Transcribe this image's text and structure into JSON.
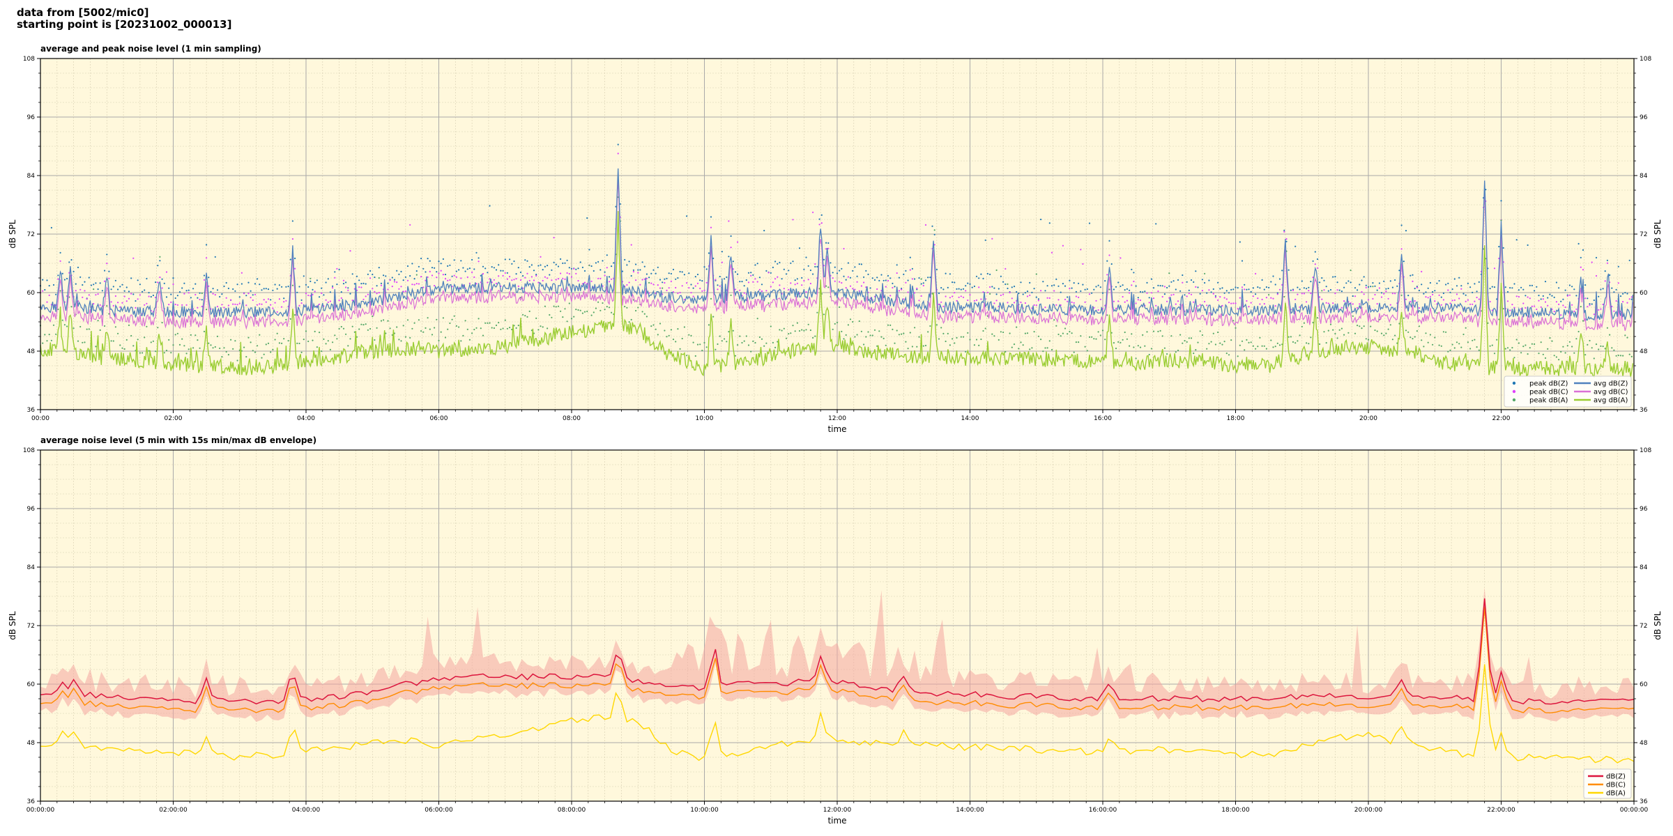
{
  "header": {
    "line1": "data from [5002/mic0]",
    "line2": "starting point is [20231002_000013]"
  },
  "colors": {
    "background": "#fff8dc",
    "grid_major": "#a9a9a9",
    "grid_minor": "#d6cdb0",
    "peak_z": "#1f77b4",
    "peak_c": "#e040fb",
    "peak_a": "#55a868",
    "avg_z": "#4f81bd",
    "avg_c": "#da70d6",
    "avg_a": "#9acd32",
    "dbz": "#dc143c",
    "dbc": "#ff8c00",
    "dba": "#ffd700",
    "envelope": "#f4a6a0"
  },
  "chart_data": [
    {
      "type": "line",
      "title": "average and peak noise level (1 min sampling)",
      "xlabel": "time",
      "ylabel": "dB SPL",
      "ylabel_right": "dB SPL",
      "ylim": [
        36,
        108
      ],
      "xlim_hours": [
        0,
        24
      ],
      "yticks": [
        "36",
        "48",
        "60",
        "72",
        "84",
        "96",
        "108"
      ],
      "xticks": [
        "00:00",
        "02:00",
        "04:00",
        "06:00",
        "08:00",
        "10:00",
        "12:00",
        "14:00",
        "16:00",
        "18:00",
        "20:00",
        "22:00"
      ],
      "grid": true,
      "legend_position": "lower-right",
      "series": [
        {
          "name": "peak dB(Z)",
          "kind": "scatter",
          "color": "#1f77b4"
        },
        {
          "name": "peak dB(C)",
          "kind": "scatter",
          "color": "#e040fb"
        },
        {
          "name": "peak dB(A)",
          "kind": "scatter",
          "color": "#55a868"
        },
        {
          "name": "avg dB(Z)",
          "kind": "line",
          "color": "#4f81bd"
        },
        {
          "name": "avg dB(C)",
          "kind": "line",
          "color": "#da70d6"
        },
        {
          "name": "avg dB(A)",
          "kind": "line",
          "color": "#9acd32"
        }
      ],
      "profile_hours": [
        0,
        0.5,
        1,
        1.5,
        2,
        2.5,
        3,
        3.5,
        4,
        4.5,
        5,
        5.5,
        6,
        6.5,
        7,
        7.5,
        8,
        8.5,
        9,
        9.5,
        10,
        10.5,
        11,
        11.5,
        12,
        12.5,
        13,
        13.5,
        14,
        14.5,
        15,
        15.5,
        16,
        16.5,
        17,
        17.5,
        18,
        18.5,
        19,
        19.5,
        20,
        20.5,
        21,
        21.5,
        22,
        22.5,
        23,
        23.5,
        24
      ],
      "avg_z_profile": [
        57,
        57,
        56.5,
        56,
        56,
        56,
        56,
        56,
        56.5,
        57,
        58,
        59.5,
        60.5,
        61,
        61,
        61,
        61,
        61,
        60,
        59,
        58.5,
        59,
        59.5,
        60,
        60,
        59,
        58,
        57,
        57,
        57,
        56.5,
        56.5,
        56.5,
        56.5,
        56.5,
        56.5,
        56.5,
        56.5,
        56.5,
        57,
        57,
        57,
        57,
        56.5,
        56,
        56,
        55.5,
        55.5,
        55.5
      ],
      "avg_a_profile": [
        48.5,
        47.5,
        46.5,
        46,
        45.5,
        45,
        44.5,
        45,
        46,
        47,
        48,
        48.5,
        48,
        48.5,
        49,
        50.5,
        52,
        53,
        52.5,
        47,
        44.5,
        45.5,
        47,
        48.5,
        49,
        48,
        47,
        47,
        46.5,
        46.5,
        46.5,
        46,
        46,
        45.5,
        46,
        46,
        45,
        45,
        47,
        48.5,
        49,
        48,
        46,
        45,
        44.5,
        44.5,
        44.5,
        44,
        44
      ],
      "spikes": [
        {
          "hour": 0.3,
          "value": 64
        },
        {
          "hour": 0.45,
          "value": 66
        },
        {
          "hour": 1.0,
          "value": 64
        },
        {
          "hour": 1.8,
          "value": 63
        },
        {
          "hour": 2.5,
          "value": 64
        },
        {
          "hour": 3.8,
          "value": 68
        },
        {
          "hour": 8.7,
          "value": 86
        },
        {
          "hour": 10.1,
          "value": 71
        },
        {
          "hour": 10.4,
          "value": 68
        },
        {
          "hour": 11.75,
          "value": 74
        },
        {
          "hour": 11.85,
          "value": 70
        },
        {
          "hour": 13.45,
          "value": 71
        },
        {
          "hour": 16.1,
          "value": 66
        },
        {
          "hour": 18.75,
          "value": 71
        },
        {
          "hour": 19.2,
          "value": 66
        },
        {
          "hour": 20.5,
          "value": 67
        },
        {
          "hour": 21.75,
          "value": 83
        },
        {
          "hour": 22.0,
          "value": 74
        },
        {
          "hour": 23.2,
          "value": 63
        },
        {
          "hour": 23.6,
          "value": 62
        }
      ]
    },
    {
      "type": "line",
      "title": "average noise level (5 min with 15s min/max dB envelope)",
      "xlabel": "time",
      "ylabel": "dB SPL",
      "ylabel_right": "dB SPL",
      "ylim": [
        36,
        108
      ],
      "xlim_hours": [
        0,
        24
      ],
      "yticks": [
        "36",
        "48",
        "60",
        "72",
        "84",
        "96",
        "108"
      ],
      "xticks": [
        "00:00:00",
        "02:00:00",
        "04:00:00",
        "06:00:00",
        "08:00:00",
        "10:00:00",
        "12:00:00",
        "14:00:00",
        "16:00:00",
        "18:00:00",
        "20:00:00",
        "22:00:00",
        "00:00:00"
      ],
      "grid": true,
      "legend_position": "lower-right",
      "series": [
        {
          "name": "dB(Z)",
          "kind": "line",
          "color": "#dc143c"
        },
        {
          "name": "dB(C)",
          "kind": "line",
          "color": "#ff8c00"
        },
        {
          "name": "dB(A)",
          "kind": "line",
          "color": "#ffd700"
        }
      ],
      "profile_hours": [
        0,
        0.5,
        1,
        1.5,
        2,
        2.5,
        3,
        3.5,
        4,
        4.5,
        5,
        5.5,
        6,
        6.5,
        7,
        7.5,
        8,
        8.5,
        9,
        9.5,
        10,
        10.5,
        11,
        11.5,
        12,
        12.5,
        13,
        13.5,
        14,
        14.5,
        15,
        15.5,
        16,
        16.5,
        17,
        17.5,
        18,
        18.5,
        19,
        19.5,
        20,
        20.5,
        21,
        21.5,
        22,
        22.5,
        23,
        23.5,
        24
      ],
      "dbz_profile": [
        57.5,
        58,
        57.5,
        57,
        56.5,
        56.5,
        56.5,
        56.5,
        57,
        57.5,
        58.5,
        60,
        61,
        61.5,
        61.5,
        61.5,
        61.5,
        61.5,
        60.5,
        59.5,
        59,
        60,
        60,
        60.5,
        60.5,
        59.5,
        58.5,
        58,
        58,
        57.5,
        57.5,
        57,
        57,
        57,
        57,
        57,
        57,
        57,
        57.5,
        57.5,
        57.5,
        57.5,
        57.5,
        57,
        56.5,
        56.5,
        56.5,
        56.5,
        56.5
      ],
      "dba_profile": [
        48,
        47.5,
        47,
        46.5,
        46,
        45.5,
        45,
        45.5,
        46.5,
        47,
        48,
        48.5,
        47.5,
        48.5,
        49.5,
        51,
        52.5,
        53.5,
        52.5,
        46.5,
        44.5,
        46,
        47.5,
        48.5,
        48.5,
        48,
        47.5,
        47.5,
        47,
        47,
        46.5,
        46.5,
        46,
        46.5,
        46.5,
        46,
        45.5,
        45.5,
        47.5,
        49,
        49.5,
        48,
        46.5,
        45.5,
        45,
        45,
        45,
        44.5,
        44.5
      ],
      "spikes": [
        {
          "hour": 0.35,
          "value": 61
        },
        {
          "hour": 0.5,
          "value": 61
        },
        {
          "hour": 2.5,
          "value": 61
        },
        {
          "hour": 3.8,
          "value": 63
        },
        {
          "hour": 8.7,
          "value": 68
        },
        {
          "hour": 10.15,
          "value": 68
        },
        {
          "hour": 11.75,
          "value": 66
        },
        {
          "hour": 13.0,
          "value": 62
        },
        {
          "hour": 16.1,
          "value": 61
        },
        {
          "hour": 20.5,
          "value": 61
        },
        {
          "hour": 21.75,
          "value": 78
        },
        {
          "hour": 22.0,
          "value": 63
        }
      ]
    }
  ]
}
